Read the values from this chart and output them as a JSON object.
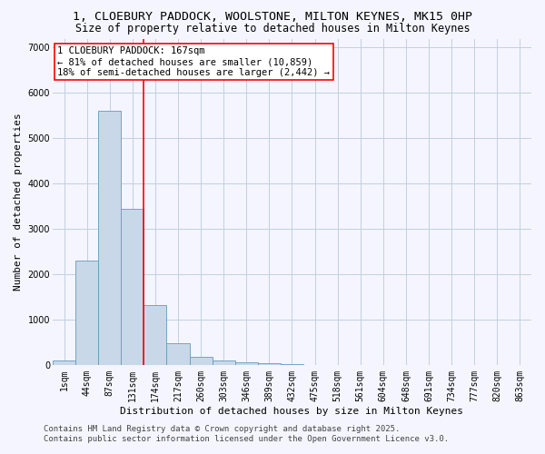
{
  "title_line1": "1, CLOEBURY PADDOCK, WOOLSTONE, MILTON KEYNES, MK15 0HP",
  "title_line2": "Size of property relative to detached houses in Milton Keynes",
  "xlabel": "Distribution of detached houses by size in Milton Keynes",
  "ylabel": "Number of detached properties",
  "bin_labels": [
    "1sqm",
    "44sqm",
    "87sqm",
    "131sqm",
    "174sqm",
    "217sqm",
    "260sqm",
    "303sqm",
    "346sqm",
    "389sqm",
    "432sqm",
    "475sqm",
    "518sqm",
    "561sqm",
    "604sqm",
    "648sqm",
    "691sqm",
    "734sqm",
    "777sqm",
    "820sqm",
    "863sqm"
  ],
  "bar_heights": [
    100,
    2300,
    5600,
    3450,
    1320,
    480,
    170,
    90,
    50,
    30,
    10,
    5,
    2,
    2,
    1,
    1,
    0,
    0,
    0,
    0,
    0
  ],
  "bar_color": "#c8d8e8",
  "bar_edge_color": "#6699bb",
  "vline_color": "red",
  "vline_bin_index": 4,
  "annotation_text": "1 CLOEBURY PADDOCK: 167sqm\n← 81% of detached houses are smaller (10,859)\n18% of semi-detached houses are larger (2,442) →",
  "annotation_box_color": "white",
  "annotation_box_edge_color": "red",
  "ylim": [
    0,
    7200
  ],
  "yticks": [
    0,
    1000,
    2000,
    3000,
    4000,
    5000,
    6000,
    7000
  ],
  "grid_color": "#c0d0e0",
  "bg_color": "#f5f5ff",
  "footer": "Contains HM Land Registry data © Crown copyright and database right 2025.\nContains public sector information licensed under the Open Government Licence v3.0.",
  "title_fontsize": 9.5,
  "subtitle_fontsize": 8.5,
  "axis_label_fontsize": 8,
  "tick_fontsize": 7,
  "annotation_fontsize": 7.5,
  "footer_fontsize": 6.5
}
